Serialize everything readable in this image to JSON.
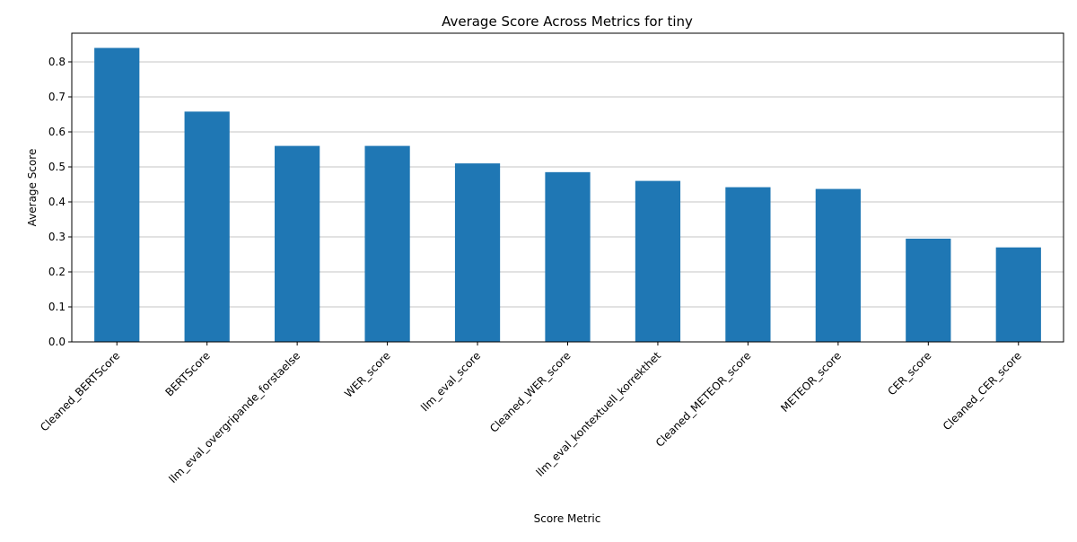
{
  "chart_data": {
    "type": "bar",
    "title": "Average Score Across Metrics for tiny",
    "xlabel": "Score Metric",
    "ylabel": "Average Score",
    "categories": [
      "Cleaned_BERTScore",
      "BERTScore",
      "llm_eval_overgripande_forstaelse",
      "WER_score",
      "llm_eval_score",
      "Cleaned_WER_score",
      "llm_eval_kontextuell_korrekthet",
      "Cleaned_METEOR_score",
      "METEOR_score",
      "CER_score",
      "Cleaned_CER_score"
    ],
    "values": [
      0.84,
      0.658,
      0.56,
      0.56,
      0.51,
      0.485,
      0.46,
      0.442,
      0.437,
      0.295,
      0.27
    ],
    "ylim": [
      0,
      0.882
    ],
    "yticks": [
      "0.0",
      "0.1",
      "0.2",
      "0.3",
      "0.4",
      "0.5",
      "0.6",
      "0.7",
      "0.8"
    ],
    "grid": "y-axis horizontal lines",
    "bar_color": "#1f77b4",
    "grid_color": "#b0b0b0"
  }
}
